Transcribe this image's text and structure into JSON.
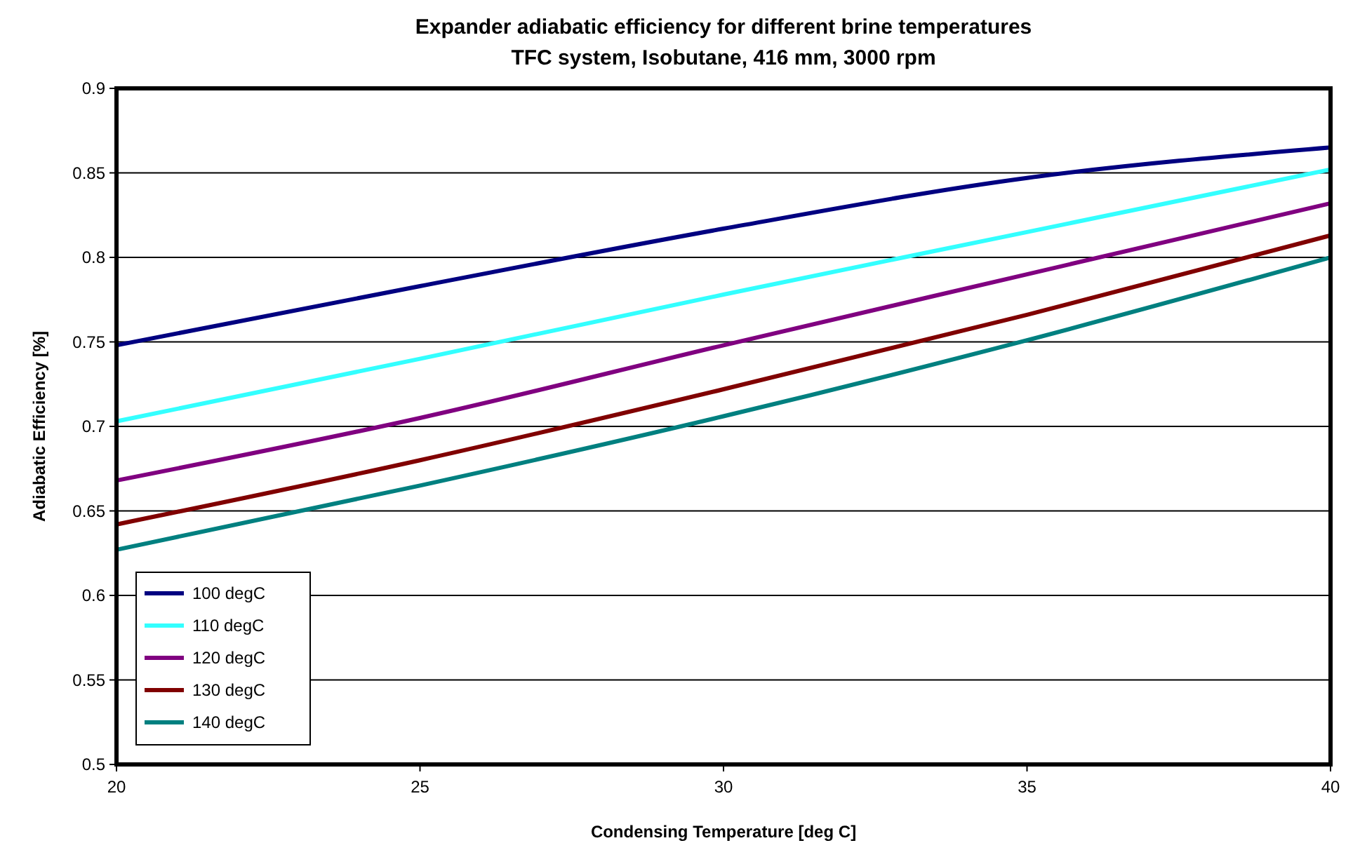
{
  "chart_data": {
    "type": "line",
    "title": "Expander adiabatic efficiency for different brine temperatures",
    "subtitle": "TFC system, Isobutane, 416 mm, 3000 rpm",
    "xlabel": "Condensing Temperature [deg C]",
    "ylabel": "Adiabatic Efficiency [%]",
    "x": [
      20,
      25,
      30,
      35,
      40
    ],
    "series": [
      {
        "name": "100 degC",
        "color": "#000080",
        "values": [
          0.748,
          0.783,
          0.817,
          0.847,
          0.865
        ]
      },
      {
        "name": "110 degC",
        "color": "#33ffff",
        "values": [
          0.703,
          0.74,
          0.778,
          0.815,
          0.852
        ]
      },
      {
        "name": "120 degC",
        "color": "#800080",
        "values": [
          0.668,
          0.705,
          0.748,
          0.79,
          0.832
        ]
      },
      {
        "name": "130 degC",
        "color": "#800000",
        "values": [
          0.642,
          0.68,
          0.722,
          0.766,
          0.813
        ]
      },
      {
        "name": "140 degC",
        "color": "#008080",
        "values": [
          0.627,
          0.665,
          0.706,
          0.751,
          0.8
        ]
      }
    ],
    "xlim": [
      20,
      40
    ],
    "xticks": [
      20,
      25,
      30,
      35,
      40
    ],
    "ylim": [
      0.5,
      0.9
    ],
    "yticks": [
      0.5,
      0.55,
      0.6,
      0.65,
      0.7,
      0.75,
      0.8,
      0.85,
      0.9
    ],
    "grid": "y",
    "legend": "bottom left",
    "marker": "none",
    "line_style": "solid"
  }
}
